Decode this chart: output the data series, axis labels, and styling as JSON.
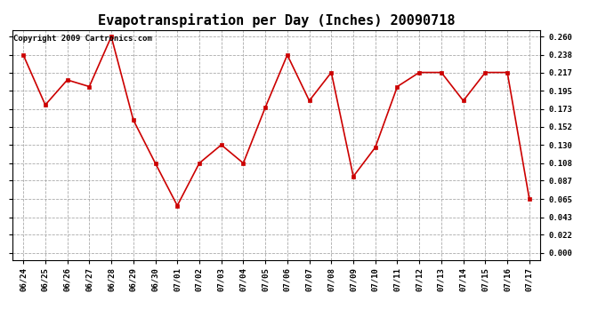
{
  "title": "Evapotranspiration per Day (Inches) 20090718",
  "copyright": "Copyright 2009 Cartronics.com",
  "labels": [
    "06/24",
    "06/25",
    "06/26",
    "06/27",
    "06/28",
    "06/29",
    "06/30",
    "07/01",
    "07/02",
    "07/03",
    "07/04",
    "07/05",
    "07/06",
    "07/07",
    "07/08",
    "07/09",
    "07/10",
    "07/11",
    "07/12",
    "07/13",
    "07/14",
    "07/15",
    "07/16",
    "07/17"
  ],
  "values": [
    0.238,
    0.178,
    0.208,
    0.2,
    0.26,
    0.16,
    0.108,
    0.057,
    0.108,
    0.13,
    0.108,
    0.175,
    0.238,
    0.183,
    0.217,
    0.092,
    0.127,
    0.2,
    0.217,
    0.217,
    0.183,
    0.217,
    0.217,
    0.065
  ],
  "line_color": "#cc0000",
  "marker": "s",
  "marker_size": 3,
  "bg_color": "#ffffff",
  "plot_bg_color": "#ffffff",
  "grid_color": "#aaaaaa",
  "yticks": [
    0.0,
    0.022,
    0.043,
    0.065,
    0.087,
    0.108,
    0.13,
    0.152,
    0.173,
    0.195,
    0.217,
    0.238,
    0.26
  ],
  "ylim_min": -0.008,
  "ylim_max": 0.268,
  "title_fontsize": 11,
  "tick_fontsize": 6.5,
  "copyright_fontsize": 6.5
}
